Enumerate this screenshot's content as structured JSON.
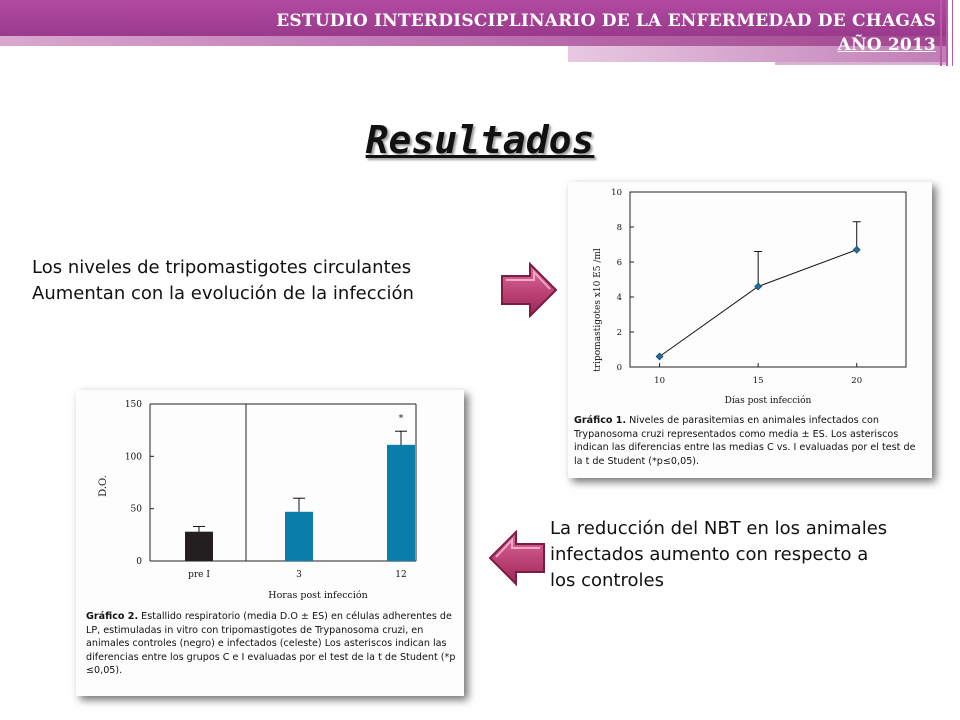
{
  "header": {
    "line1": "ESTUDIO INTERDISCIPLINARIO  DE LA ENFERMEDAD DE CHAGAS",
    "line2": "AÑO 2013",
    "color": "#9a3a8c"
  },
  "title": "Resultados",
  "text1": {
    "line1": "Los niveles de tripomastigotes circulantes",
    "line2": "Aumentan con la evolución de la infección"
  },
  "text2": {
    "line1": "La reducción del NBT en los animales",
    "line2": "infectados aumento con respecto a",
    "line3": "los controles"
  },
  "arrows": {
    "right": "arrow-right-icon",
    "left": "arrow-left-icon",
    "color": "#c0396f"
  },
  "figure1": {
    "caption_label": "Gráfico 1.",
    "caption_text": "Niveles de parasitemias en animales infectados con Trypanosoma cruzi representados como media ± ES. Los asteriscos indican las diferencias entre las medias C vs. I evaluadas por el test de la t de Student (*p≤0,05).",
    "chart_data": {
      "type": "line",
      "xlabel": "Días post infección",
      "ylabel": "tripomastigotes x10 E5 /ml",
      "x": [
        10,
        15,
        20
      ],
      "xticks": [
        "10",
        "15",
        "20"
      ],
      "yticks": [
        "0",
        "2",
        "4",
        "6",
        "8",
        "10"
      ],
      "ylim": [
        0,
        10
      ],
      "series": [
        {
          "values": [
            0.6,
            4.6,
            6.7
          ],
          "error_plus": [
            0,
            2.0,
            1.6
          ]
        }
      ],
      "marker_color": "#1f6e9c"
    }
  },
  "figure2": {
    "caption_label": "Gráfico 2.",
    "caption_text": "Estallido respiratorio (media D.O ± ES) en células adherentes de LP, estimuladas in vitro con tripomastigotes de Trypanosoma cruzi, en animales controles (negro) e infectados (celeste) Los asteriscos indican las diferencias entre los grupos C e I evaluadas por el test de la t de Student (*p ≤0,05).",
    "chart_data": {
      "type": "bar",
      "xlabel": "Horas post infección",
      "ylabel": "D.O.",
      "categories": [
        "pre I",
        "3",
        "12"
      ],
      "values": [
        28,
        47,
        111
      ],
      "errors": [
        5,
        13,
        13
      ],
      "colors": [
        "#231f20",
        "#0a7eab",
        "#0a7eab"
      ],
      "yticks": [
        "0",
        "50",
        "100",
        "150"
      ],
      "ylim": [
        0,
        150
      ],
      "annotation": "*"
    }
  }
}
